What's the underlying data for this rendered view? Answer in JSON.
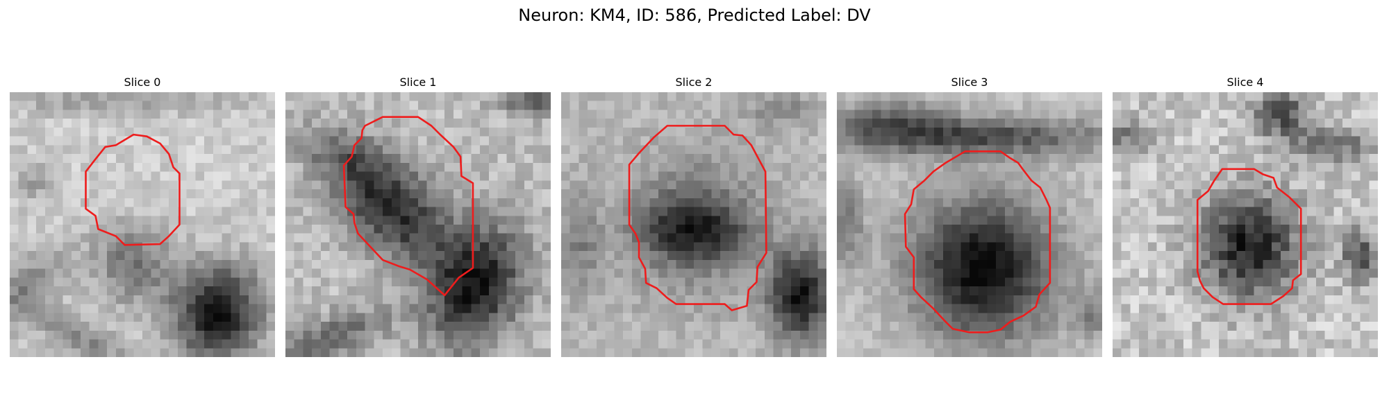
{
  "figure": {
    "title": "Neuron: KM4, ID: 586, Predicted Label: DV"
  },
  "colors": {
    "contour": "#ee1c1c",
    "background": "#ffffff",
    "colormap": "grayscale"
  },
  "panels": [
    {
      "title": "Slice 0"
    },
    {
      "title": "Slice 1"
    },
    {
      "title": "Slice 2"
    },
    {
      "title": "Slice 3"
    },
    {
      "title": "Slice 4"
    }
  ]
}
